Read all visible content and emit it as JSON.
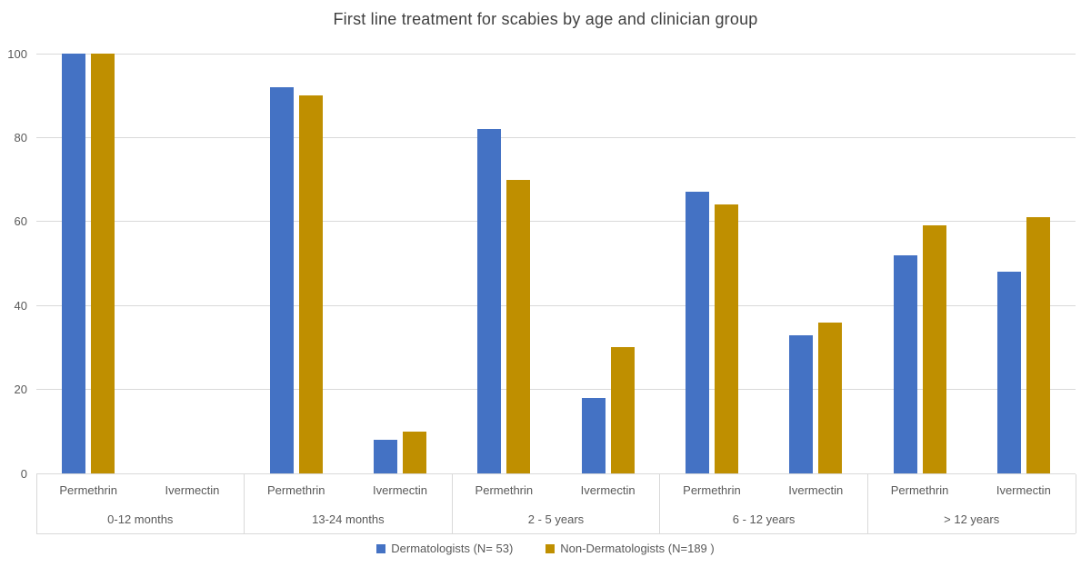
{
  "chart_data": {
    "type": "bar",
    "title": "First line treatment for scabies by age and clinician group",
    "groups": [
      "0-12 months",
      "13-24 months",
      "2 - 5 years",
      "6 - 12 years",
      "> 12 years"
    ],
    "subcategories": [
      "Permethrin",
      "Ivermectin"
    ],
    "series": [
      {
        "name": "Dermatologists (N= 53)",
        "color": "#4472C4",
        "values": [
          [
            100,
            0
          ],
          [
            92,
            8
          ],
          [
            82,
            18
          ],
          [
            67,
            33
          ],
          [
            52,
            48
          ]
        ]
      },
      {
        "name": "Non-Dermatologists (N=189 )",
        "color": "#BF8F00",
        "values": [
          [
            100,
            0
          ],
          [
            90,
            10
          ],
          [
            70,
            30
          ],
          [
            64,
            36
          ],
          [
            59,
            61
          ]
        ]
      }
    ],
    "ylabel": "",
    "xlabel": "",
    "ylim": [
      0,
      100
    ],
    "ytick_interval": 20,
    "yticks": [
      0,
      20,
      40,
      60,
      80,
      100
    ],
    "grid": true,
    "legend_position": "bottom",
    "colors": {
      "gridline": "#D9D9D9",
      "axis_text": "#595959",
      "title_text": "#404040"
    }
  }
}
